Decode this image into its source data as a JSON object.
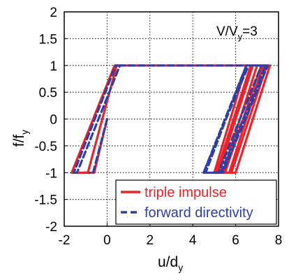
{
  "chart_data": {
    "type": "line",
    "xlabel": {
      "main": "u/d",
      "sub": "y"
    },
    "ylabel": {
      "main": "f/f",
      "sub": "y"
    },
    "xlim": [
      -2,
      8
    ],
    "ylim": [
      -2,
      2
    ],
    "xticks": [
      -2,
      0,
      2,
      4,
      6,
      8
    ],
    "xtick_labels": [
      "-2",
      "0",
      "2",
      "4",
      "6",
      "8"
    ],
    "yticks": [
      -2,
      -1.5,
      -1,
      -0.5,
      0,
      0.5,
      1,
      1.5,
      2
    ],
    "ytick_labels": [
      "-2",
      "-1.5",
      "-1",
      "-0.5",
      "0",
      "0.5",
      "1",
      "1.5",
      "2"
    ],
    "grid": true,
    "annotation": {
      "main": "V/V",
      "sub": "y",
      "suffix": "=3"
    },
    "legend_position": "bottom-right",
    "series": [
      {
        "name": "triple impulse",
        "color": "#e8232b",
        "style": "solid",
        "x": [
          0,
          -0.6,
          -0.9,
          0.45,
          7.6,
          6.0,
          5.4,
          7.0,
          7.45,
          5.8,
          5.2,
          6.8,
          7.3,
          5.7,
          5.1,
          6.7,
          7.2,
          5.5,
          5.0,
          6.5
        ],
        "y": [
          0,
          -1,
          -1,
          1,
          1,
          -1,
          -1,
          1,
          1,
          -1,
          -1,
          1,
          1,
          -1,
          -1,
          1,
          1,
          -1,
          -1,
          1
        ]
      },
      {
        "name": "forward directivity",
        "color": "#2f3fa3",
        "style": "dashed",
        "x": [
          0,
          -0.65,
          -1.4,
          0.6,
          7.5,
          5.4,
          4.5,
          6.6,
          7.4,
          5.3,
          4.6,
          6.5,
          7.2,
          5.2,
          4.5,
          6.5
        ],
        "y": [
          0,
          -1,
          -1,
          1,
          1,
          -1,
          -1,
          1,
          1,
          -1,
          -1,
          1,
          1,
          -1,
          -1,
          1
        ]
      },
      {
        "name": "",
        "color": "#e8232b",
        "style": "solid",
        "x": [
          -0.9,
          -1.65,
          0.35,
          0.45
        ],
        "y": [
          -1,
          -1,
          1,
          1
        ]
      },
      {
        "name": "",
        "color": "#2f3fa3",
        "style": "dashed",
        "x": [
          -1.4,
          -1.55,
          0.4,
          0.6
        ],
        "y": [
          -1,
          -1,
          1,
          1
        ]
      }
    ]
  }
}
